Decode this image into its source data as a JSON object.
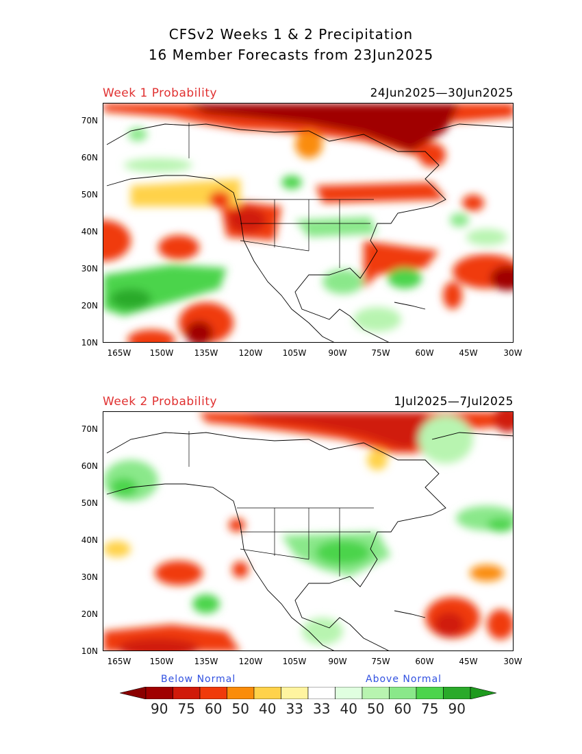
{
  "title_line1": "CFSv2 Weeks 1 & 2 Precipitation",
  "title_line2": "16 Member Forecasts from 23Jun2025",
  "panels": [
    {
      "label": "Week 1 Probability",
      "dates": "24Jun2025—30Jun2025"
    },
    {
      "label": "Week 2 Probability",
      "dates": "1Jul2025—7Jul2025"
    }
  ],
  "lat_ticks": [
    "70N",
    "60N",
    "50N",
    "40N",
    "30N",
    "20N",
    "10N"
  ],
  "lon_ticks": [
    "165W",
    "150W",
    "135W",
    "120W",
    "105W",
    "90W",
    "75W",
    "60W",
    "45W",
    "30W"
  ],
  "legend": {
    "below": "Below Normal",
    "above": "Above Normal",
    "labels": [
      "90",
      "75",
      "60",
      "50",
      "40",
      "33",
      "33",
      "40",
      "50",
      "60",
      "75",
      "90"
    ],
    "colors": [
      "#a00000",
      "#d01a0a",
      "#f03a0a",
      "#fa8c0a",
      "#ffd24a",
      "#fff4a0",
      "#ffffff",
      "#e0ffe0",
      "#b8f4b0",
      "#8ae88a",
      "#4cd44c",
      "#2aaa2a"
    ],
    "end_colors": {
      "below": "#8a0000",
      "above": "#1e9a1e"
    }
  }
}
